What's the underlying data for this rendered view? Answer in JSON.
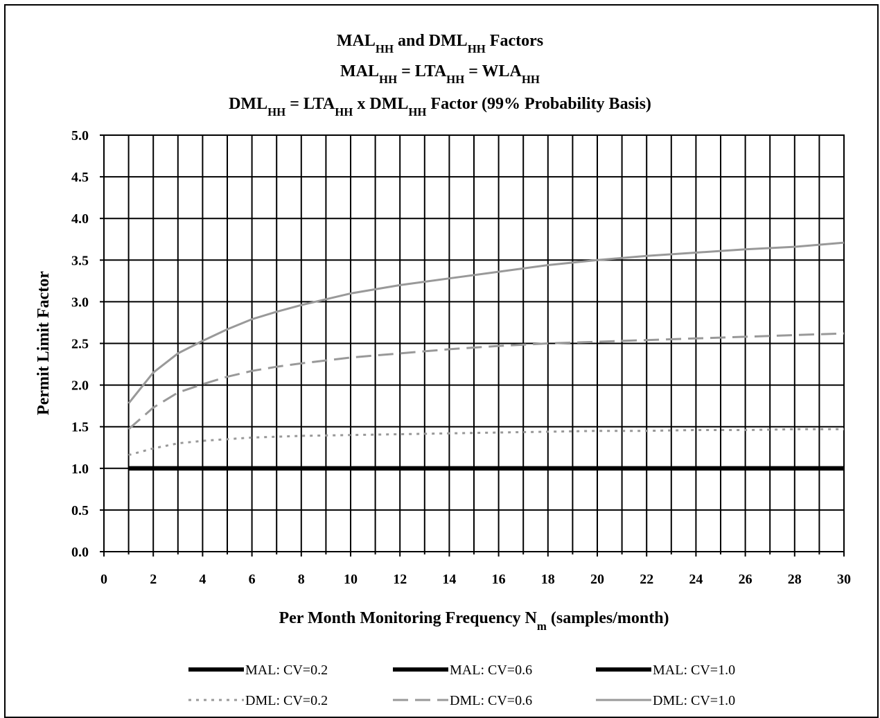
{
  "chart_data": {
    "type": "line",
    "title_lines": [
      {
        "parts": [
          {
            "t": "MAL"
          },
          {
            "t": "HH",
            "sub": true
          },
          {
            "t": " and DML"
          },
          {
            "t": "HH",
            "sub": true
          },
          {
            "t": " Factors"
          }
        ]
      },
      {
        "parts": [
          {
            "t": "MAL"
          },
          {
            "t": "HH",
            "sub": true
          },
          {
            "t": " = LTA"
          },
          {
            "t": "HH",
            "sub": true
          },
          {
            "t": " = WLA"
          },
          {
            "t": "HH",
            "sub": true
          }
        ]
      },
      {
        "parts": [
          {
            "t": "DML"
          },
          {
            "t": "HH",
            "sub": true
          },
          {
            "t": " = LTA"
          },
          {
            "t": "HH",
            "sub": true
          },
          {
            "t": " x DML"
          },
          {
            "t": "HH",
            "sub": true
          },
          {
            "t": " Factor  (99% Probability Basis)"
          }
        ]
      }
    ],
    "xlabel_parts": [
      {
        "t": "Per Month Monitoring Frequency N"
      },
      {
        "t": "m",
        "sub": true
      },
      {
        "t": " (samples/month)"
      }
    ],
    "ylabel": "Permit Limit Factor",
    "xlim": [
      0,
      30
    ],
    "ylim": [
      0,
      5
    ],
    "xticks": [
      0,
      2,
      4,
      6,
      8,
      10,
      12,
      14,
      16,
      18,
      20,
      22,
      24,
      26,
      28,
      30
    ],
    "yticks": [
      "0.0",
      "0.5",
      "1.0",
      "1.5",
      "2.0",
      "2.5",
      "3.0",
      "3.5",
      "4.0",
      "4.5",
      "5.0"
    ],
    "x_minor_gridlines": [
      1,
      3,
      5,
      7,
      9,
      11,
      13,
      15,
      17,
      19,
      21,
      23,
      25,
      27,
      29
    ],
    "grid": true,
    "legend_position": "bottom",
    "series": [
      {
        "name": "MAL: CV=0.2",
        "color": "#000000",
        "style": "solid-thick",
        "x": [
          1,
          30
        ],
        "y": [
          1.0,
          1.0
        ]
      },
      {
        "name": "MAL: CV=0.6",
        "color": "#000000",
        "style": "solid-thick",
        "x": [
          1,
          30
        ],
        "y": [
          1.0,
          1.0
        ]
      },
      {
        "name": "MAL: CV=1.0",
        "color": "#000000",
        "style": "solid-thick",
        "x": [
          1,
          30
        ],
        "y": [
          1.0,
          1.0
        ]
      },
      {
        "name": "DML: CV=0.2",
        "color": "#999999",
        "style": "dotted",
        "x": [
          1,
          2,
          3,
          4,
          5,
          6,
          7,
          8,
          10,
          12,
          14,
          16,
          18,
          20,
          22,
          24,
          26,
          28,
          30
        ],
        "y": [
          1.16,
          1.24,
          1.3,
          1.33,
          1.35,
          1.37,
          1.38,
          1.39,
          1.4,
          1.41,
          1.42,
          1.43,
          1.44,
          1.45,
          1.45,
          1.46,
          1.46,
          1.47,
          1.47
        ]
      },
      {
        "name": "DML: CV=0.6",
        "color": "#999999",
        "style": "dashed",
        "x": [
          1,
          2,
          3,
          4,
          5,
          6,
          7,
          8,
          10,
          12,
          14,
          16,
          18,
          20,
          22,
          24,
          26,
          28,
          30
        ],
        "y": [
          1.47,
          1.73,
          1.91,
          2.01,
          2.1,
          2.17,
          2.22,
          2.26,
          2.33,
          2.38,
          2.43,
          2.47,
          2.5,
          2.52,
          2.54,
          2.56,
          2.58,
          2.6,
          2.62
        ]
      },
      {
        "name": "DML: CV=1.0",
        "color": "#999999",
        "style": "solid",
        "x": [
          1,
          2,
          3,
          4,
          5,
          6,
          7,
          8,
          10,
          12,
          14,
          16,
          18,
          20,
          22,
          24,
          26,
          28,
          30
        ],
        "y": [
          1.78,
          2.15,
          2.38,
          2.53,
          2.67,
          2.79,
          2.88,
          2.96,
          3.1,
          3.2,
          3.28,
          3.36,
          3.44,
          3.5,
          3.55,
          3.59,
          3.63,
          3.66,
          3.71
        ]
      }
    ]
  }
}
